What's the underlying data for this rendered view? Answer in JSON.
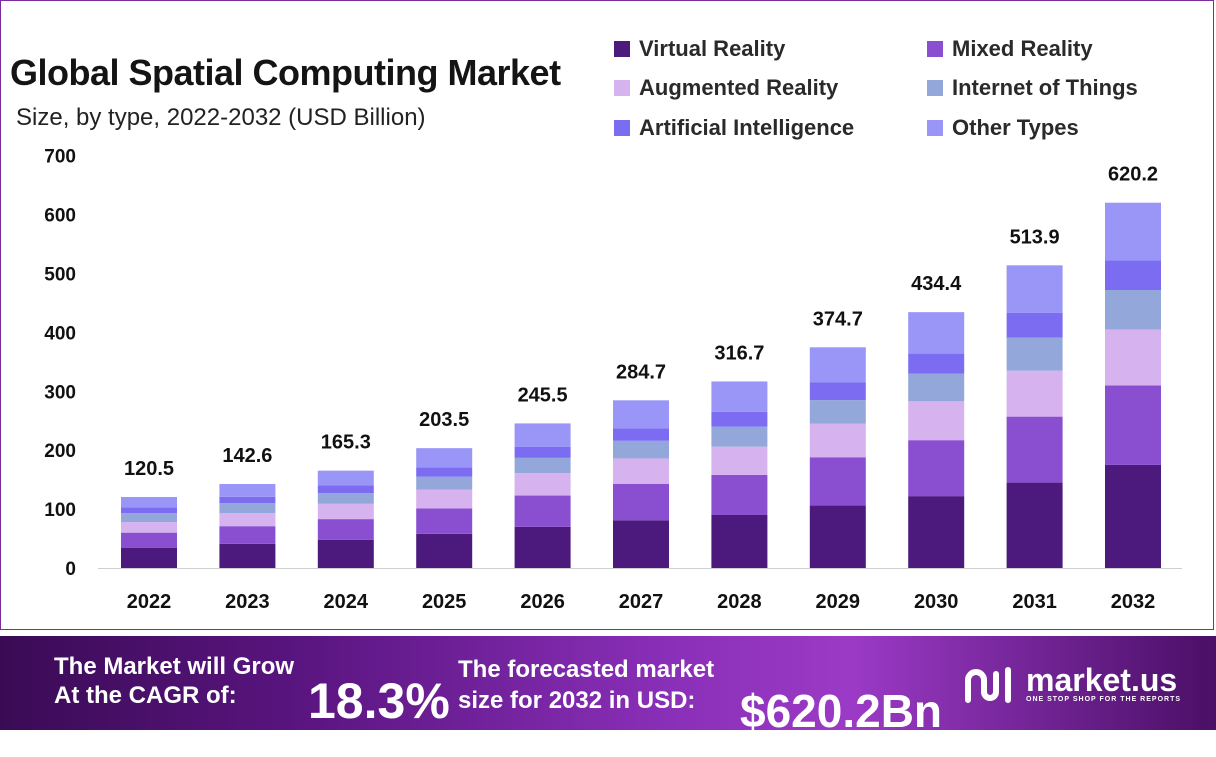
{
  "title": "Global Spatial Computing Market",
  "subtitle": "Size, by  type,  2022-2032 (USD Billion)",
  "legend": [
    {
      "name": "Virtual Reality",
      "color": "#4b1a7c"
    },
    {
      "name": "Mixed Reality",
      "color": "#8a4fd1"
    },
    {
      "name": "Augmented Reality",
      "color": "#d6b2ee"
    },
    {
      "name": "Internet of Things",
      "color": "#93a7da"
    },
    {
      "name": "Artificial Intelligence",
      "color": "#7b6cf2"
    },
    {
      "name": "Other Types",
      "color": "#9a96f7"
    }
  ],
  "chart_data": {
    "type": "bar",
    "stacked": true,
    "title": "Global Spatial Computing Market",
    "subtitle": "Size, by  type,  2022-2032 (USD Billion)",
    "categories": [
      "2022",
      "2023",
      "2024",
      "2025",
      "2026",
      "2027",
      "2028",
      "2029",
      "2030",
      "2031",
      "2032"
    ],
    "totals": [
      120.5,
      142.6,
      165.3,
      203.5,
      245.5,
      284.7,
      316.7,
      374.7,
      434.4,
      513.9,
      620.2
    ],
    "total_labels": [
      "120.5",
      "142.6",
      "165.3",
      "203.5",
      "245.5",
      "284.7",
      "316.7",
      "374.7",
      "434.4",
      "513.9",
      "620.2"
    ],
    "series": [
      {
        "name": "Virtual Reality",
        "values": [
          34,
          41,
          48,
          58,
          70,
          81,
          90,
          106,
          122,
          145,
          175
        ]
      },
      {
        "name": "Mixed Reality",
        "values": [
          26,
          30,
          35,
          43,
          53,
          62,
          68,
          82,
          95,
          112,
          135
        ]
      },
      {
        "name": "Augmented Reality",
        "values": [
          18,
          22,
          26,
          32,
          38,
          43,
          48,
          57,
          66,
          78,
          95
        ]
      },
      {
        "name": "Internet of Things",
        "values": [
          15,
          17,
          18,
          22,
          26,
          30,
          34,
          40,
          47,
          56,
          67
        ]
      },
      {
        "name": "Artificial Intelligence",
        "values": [
          10,
          11,
          13,
          16,
          19,
          21,
          25,
          30,
          34,
          42,
          50
        ]
      },
      {
        "name": "Other Types",
        "values": [
          17.5,
          21.6,
          25.3,
          32.5,
          39.5,
          47.7,
          51.7,
          59.7,
          70.4,
          80.9,
          98.2
        ]
      }
    ],
    "yticks": [
      "0",
      "100",
      "200",
      "300",
      "400",
      "500",
      "600",
      "700"
    ],
    "ylim": [
      0,
      700
    ],
    "xlabel": "",
    "ylabel": "",
    "grid": false,
    "legend_position": "top-right"
  },
  "banner": {
    "line1": "The Market will Grow",
    "line2": "At the CAGR of:",
    "cagr": "18.3%",
    "line3": "The forecasted market",
    "line4": "size for 2032 in USD:",
    "forecast": "$620.2Bn",
    "brand": "market.us",
    "tagline": "ONE STOP SHOP FOR THE REPORTS"
  }
}
